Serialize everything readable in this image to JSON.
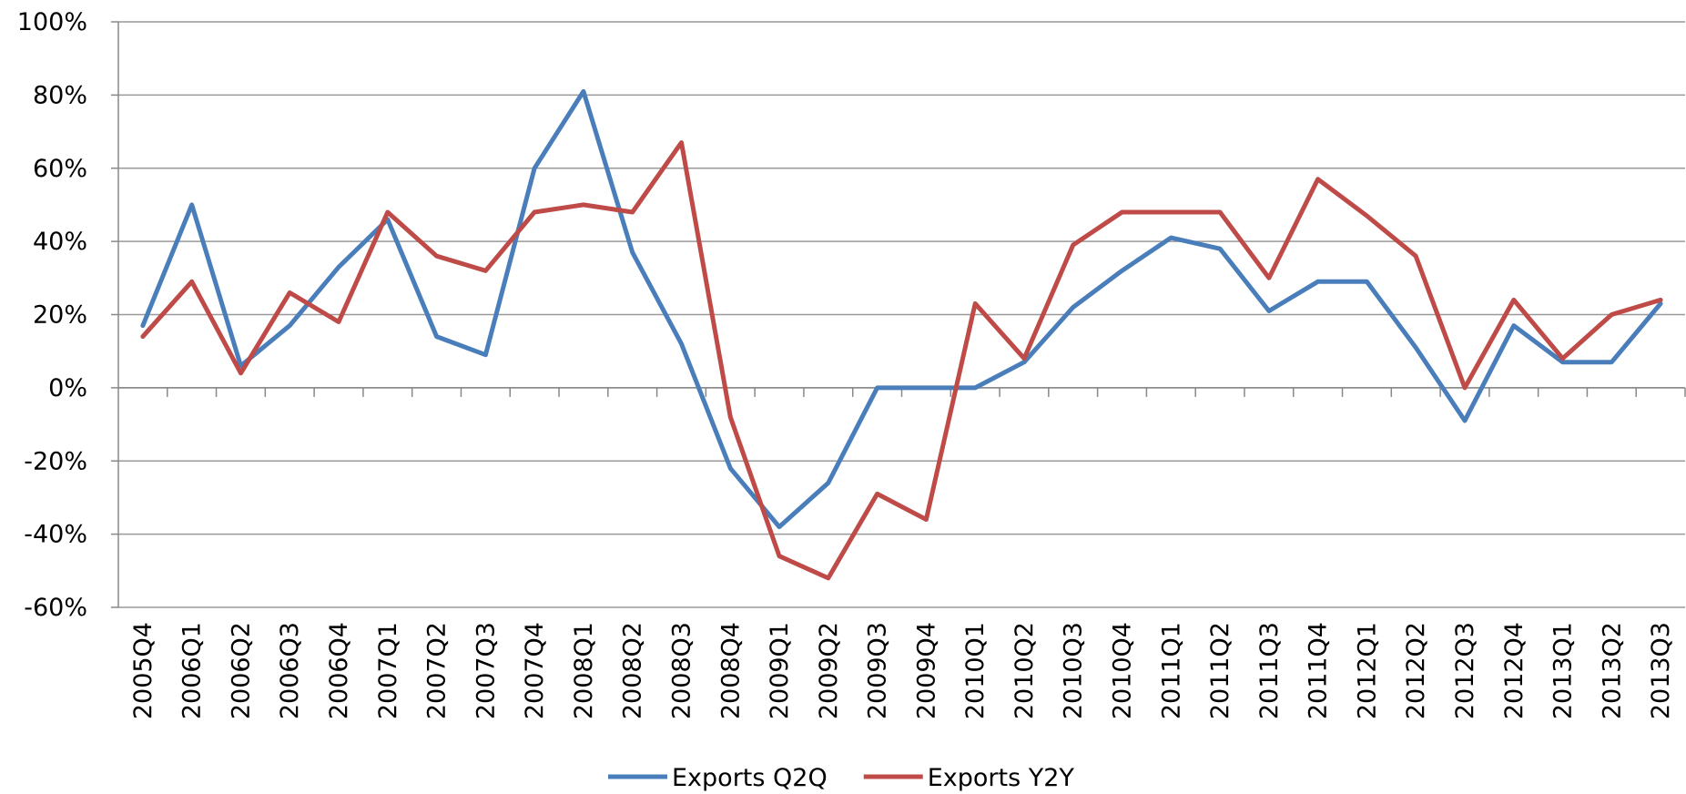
{
  "chart_data": {
    "type": "line",
    "categories": [
      "2005Q4",
      "2006Q1",
      "2006Q2",
      "2006Q3",
      "2006Q4",
      "2007Q1",
      "2007Q2",
      "2007Q3",
      "2007Q4",
      "2008Q1",
      "2008Q2",
      "2008Q3",
      "2008Q4",
      "2009Q1",
      "2009Q2",
      "2009Q3",
      "2009Q4",
      "2010Q1",
      "2010Q2",
      "2010Q3",
      "2010Q4",
      "2011Q1",
      "2011Q2",
      "2011Q3",
      "2011Q4",
      "2012Q1",
      "2012Q2",
      "2012Q3",
      "2012Q4",
      "2013Q1",
      "2013Q2",
      "2013Q3"
    ],
    "series": [
      {
        "name": "Exports Q2Q",
        "color": "#4a7ebb",
        "values": [
          17,
          50,
          6,
          17,
          33,
          46,
          14,
          9,
          60,
          81,
          37,
          12,
          -22,
          -38,
          -26,
          0,
          0,
          0,
          7,
          22,
          32,
          41,
          38,
          21,
          29,
          29,
          11,
          -9,
          17,
          7,
          7,
          23
        ]
      },
      {
        "name": "Exports Y2Y",
        "color": "#be4b48",
        "values": [
          14,
          29,
          4,
          26,
          18,
          48,
          36,
          32,
          48,
          50,
          48,
          67,
          -8,
          -46,
          -52,
          -29,
          -36,
          23,
          8,
          39,
          48,
          48,
          48,
          30,
          57,
          47,
          36,
          0,
          24,
          8,
          20,
          24
        ]
      }
    ],
    "ylim": [
      -60,
      100
    ],
    "yticks": [
      {
        "value": -60,
        "label": "-60%"
      },
      {
        "value": -40,
        "label": "-40%"
      },
      {
        "value": -20,
        "label": "-20%"
      },
      {
        "value": 0,
        "label": "0%"
      },
      {
        "value": 20,
        "label": "20%"
      },
      {
        "value": 40,
        "label": "40%"
      },
      {
        "value": 60,
        "label": "60%"
      },
      {
        "value": 80,
        "label": "80%"
      },
      {
        "value": 100,
        "label": "100%"
      }
    ],
    "grid": true,
    "legend": "bottom"
  }
}
